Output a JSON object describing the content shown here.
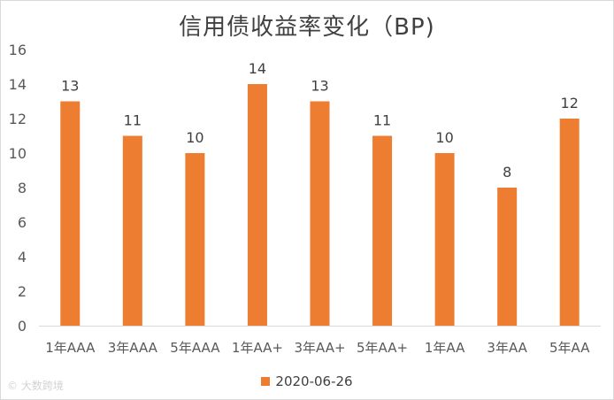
{
  "chart_data": {
    "type": "bar",
    "title": "信用债收益率变化（BP)",
    "categories": [
      "1年AAA",
      "3年AAA",
      "5年AAA",
      "1年AA+",
      "3年AA+",
      "5年AA+",
      "1年AA",
      "3年AA",
      "5年AA"
    ],
    "series": [
      {
        "name": "2020-06-26",
        "values": [
          13,
          11,
          10,
          14,
          13,
          11,
          10,
          8,
          12
        ]
      }
    ],
    "ylim": [
      0,
      16
    ],
    "yticks": [
      0,
      2,
      4,
      6,
      8,
      10,
      12,
      14,
      16
    ],
    "xlabel": "",
    "ylabel": "",
    "grid": false,
    "legend_position": "bottom",
    "bar_color": "#ED7D31",
    "data_labels": true
  },
  "watermark": {
    "text": "大数跨境"
  }
}
